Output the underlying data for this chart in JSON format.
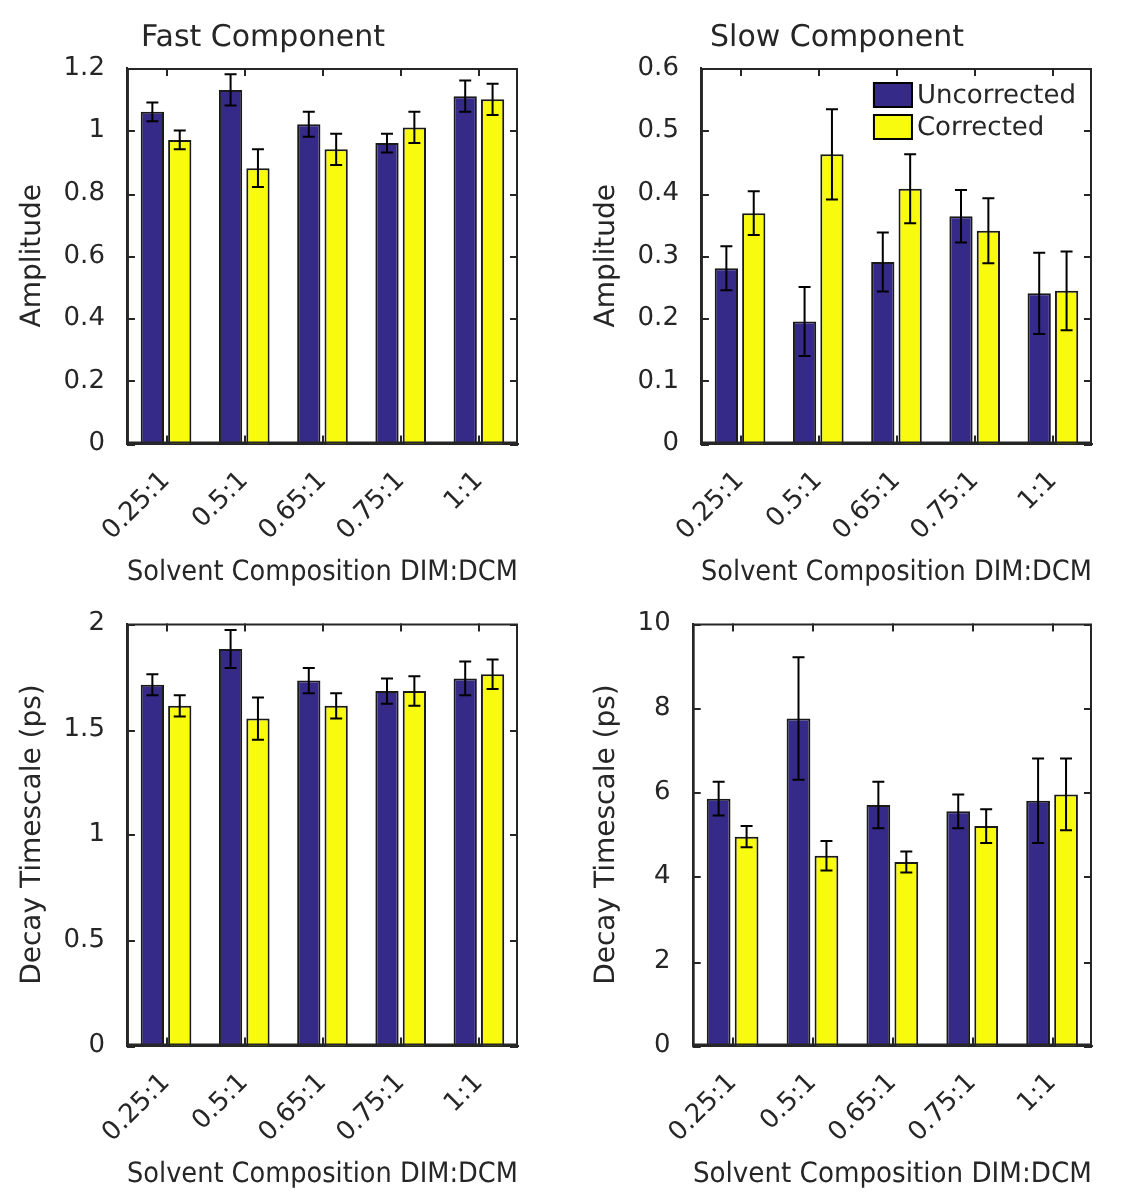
{
  "chart_data": [
    {
      "type": "bar",
      "title": "Fast Component",
      "xlabel": "Solvent Composition DIM:DCM",
      "ylabel": "Amplitude",
      "categories": [
        "0.25:1",
        "0.5:1",
        "0.65:1",
        "0.75:1",
        "1:1"
      ],
      "ylim": [
        0,
        1.2
      ],
      "yticks": [
        0,
        0.2,
        0.4,
        0.6,
        0.8,
        1,
        1.2
      ],
      "series": [
        {
          "color": "#352a87",
          "values": [
            1.06,
            1.13,
            1.02,
            0.96,
            1.11
          ],
          "errors": [
            0.03,
            0.05,
            0.04,
            0.03,
            0.05
          ]
        },
        {
          "color": "#f9fb0e",
          "values": [
            0.97,
            0.88,
            0.94,
            1.01,
            1.1
          ],
          "errors": [
            0.03,
            0.06,
            0.05,
            0.05,
            0.05
          ]
        }
      ]
    },
    {
      "type": "bar",
      "title": "Slow Component",
      "xlabel": "Solvent Composition DIM:DCM",
      "ylabel": "Amplitude",
      "categories": [
        "0.25:1",
        "0.5:1",
        "0.65:1",
        "0.75:1",
        "1:1"
      ],
      "ylim": [
        0,
        0.6
      ],
      "yticks": [
        0,
        0.1,
        0.2,
        0.3,
        0.4,
        0.5,
        0.6
      ],
      "legend": "top right",
      "series": [
        {
          "name": "Uncorrected",
          "color": "#352a87",
          "values": [
            0.28,
            0.195,
            0.29,
            0.363,
            0.24
          ],
          "errors": [
            0.035,
            0.055,
            0.047,
            0.042,
            0.065
          ]
        },
        {
          "name": "Corrected",
          "color": "#f9fb0e",
          "values": [
            0.368,
            0.462,
            0.407,
            0.34,
            0.244
          ],
          "errors": [
            0.035,
            0.072,
            0.055,
            0.052,
            0.063
          ]
        }
      ]
    },
    {
      "type": "bar",
      "xlabel": "Solvent Composition DIM:DCM",
      "ylabel": "Decay Timescale (ps)",
      "categories": [
        "0.25:1",
        "0.5:1",
        "0.65:1",
        "0.75:1",
        "1:1"
      ],
      "ylim": [
        0,
        2
      ],
      "yticks": [
        0,
        0.5,
        1,
        1.5,
        2
      ],
      "series": [
        {
          "color": "#352a87",
          "values": [
            1.71,
            1.88,
            1.73,
            1.68,
            1.74
          ],
          "errors": [
            0.05,
            0.09,
            0.06,
            0.06,
            0.08
          ]
        },
        {
          "color": "#f9fb0e",
          "values": [
            1.61,
            1.55,
            1.61,
            1.68,
            1.76
          ],
          "errors": [
            0.05,
            0.1,
            0.06,
            0.07,
            0.07
          ]
        }
      ]
    },
    {
      "type": "bar",
      "xlabel": "Solvent Composition DIM:DCM",
      "ylabel": "Decay Timescale (ps)",
      "categories": [
        "0.25:1",
        "0.5:1",
        "0.65:1",
        "0.75:1",
        "1:1"
      ],
      "ylim": [
        0,
        10
      ],
      "yticks": [
        0,
        2,
        4,
        6,
        8,
        10
      ],
      "series": [
        {
          "color": "#352a87",
          "values": [
            5.85,
            7.75,
            5.7,
            5.55,
            5.8
          ],
          "errors": [
            0.4,
            1.45,
            0.55,
            0.4,
            1.0
          ]
        },
        {
          "color": "#f9fb0e",
          "values": [
            4.95,
            4.5,
            4.35,
            5.2,
            5.95
          ],
          "errors": [
            0.25,
            0.35,
            0.25,
            0.4,
            0.85
          ]
        }
      ]
    }
  ]
}
